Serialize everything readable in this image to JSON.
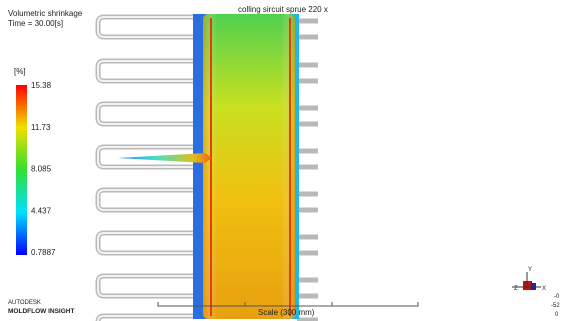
{
  "header": {
    "title": "Volumetric shrinkage",
    "time": "Time = 30.00[s]"
  },
  "view_title": "colling sircuit sprue 220 x",
  "legend": {
    "unit": "[%]",
    "labels": [
      "15.38",
      "11.73",
      "8.085",
      "4.437",
      "0.7887"
    ]
  },
  "branding": {
    "company": "AUTODESK",
    "product": "MOLDFLOW INSIGHT"
  },
  "scale": "Scale (300 mm)",
  "axes": {
    "y": "Y",
    "z": "Z",
    "x": "X"
  },
  "coords": [
    "-0",
    "-52",
    "0"
  ]
}
